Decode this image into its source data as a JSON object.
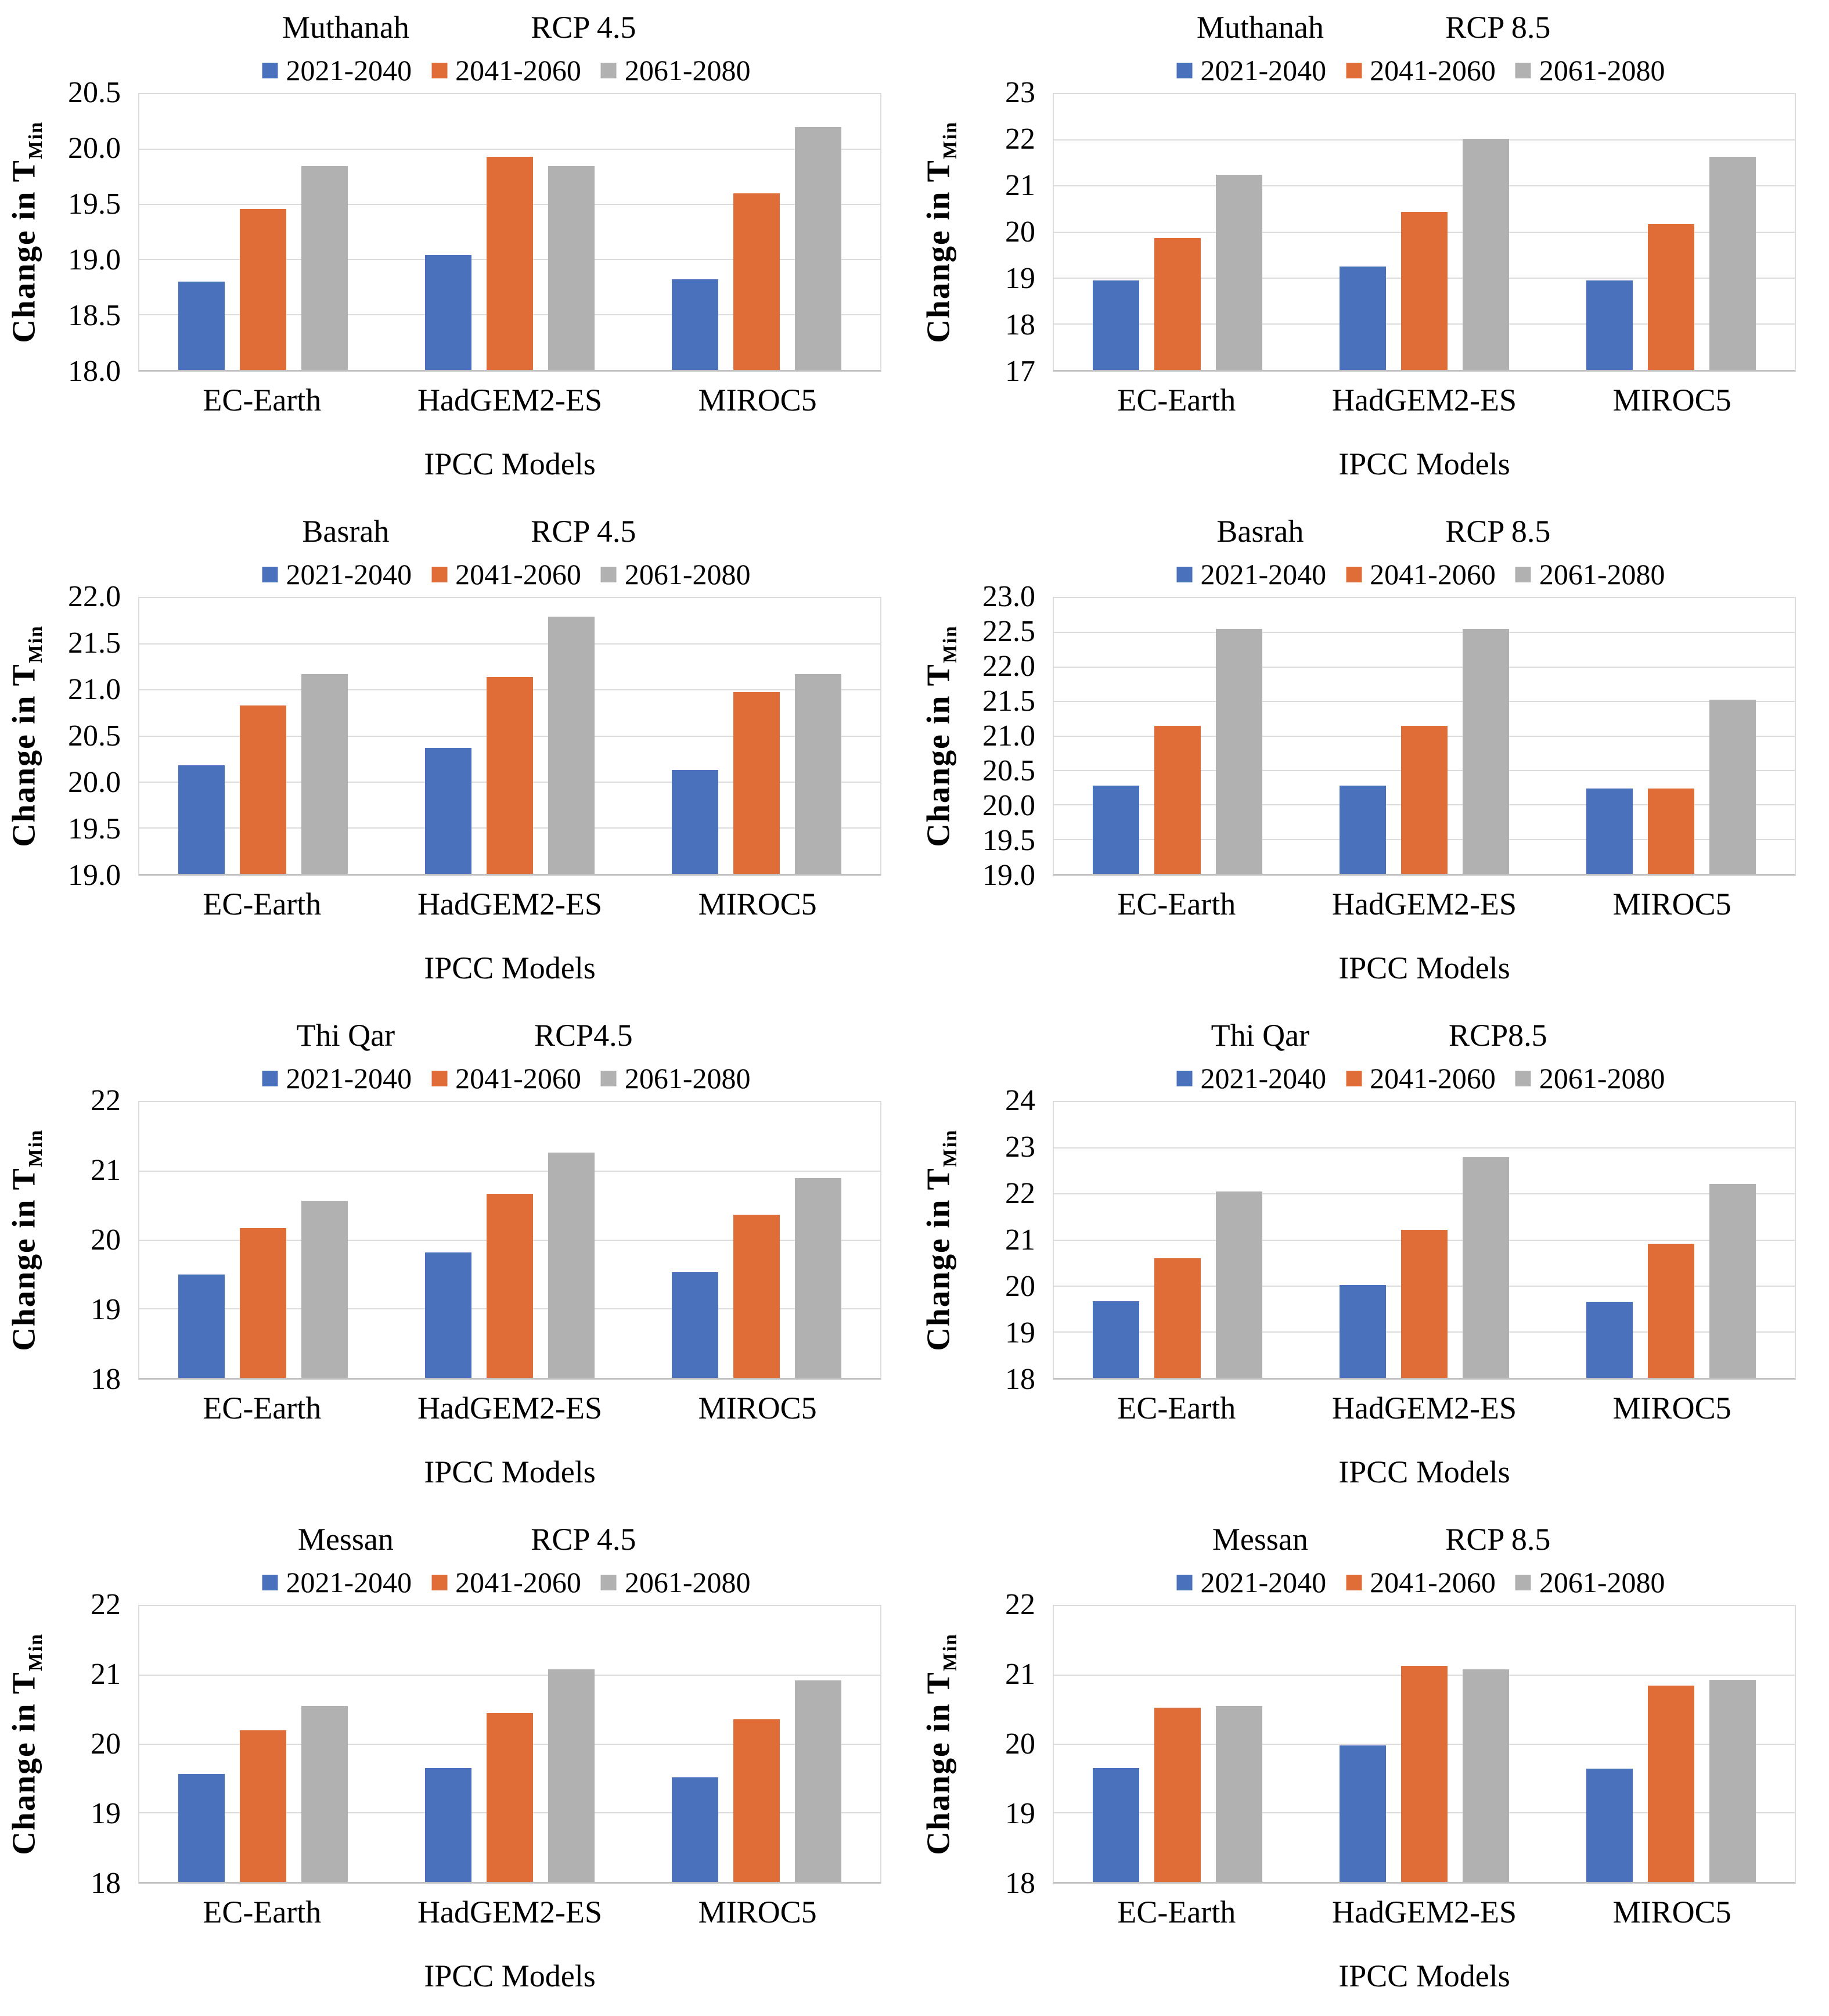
{
  "shared": {
    "ylabel_main": "Change in T",
    "ylabel_sub": "Min",
    "xlabel": "IPCC Models",
    "categories": [
      "EC-Earth",
      "HadGEM2-ES",
      "MIROC5"
    ],
    "legend": [
      "2021-2040",
      "2041-2060",
      "2061-2080"
    ],
    "colors": {
      "series": [
        "#4A72BC",
        "#E06C38",
        "#B1B1B1"
      ],
      "gridline": "#DCDCDC",
      "axis": "#C0C0C0",
      "text": "#000000"
    }
  },
  "chart_data": [
    {
      "type": "bar",
      "site": "Muthanah",
      "scenario": "RCP 4.5",
      "xlabel": "IPCC Models",
      "ylabel": "Change in TMin",
      "categories": [
        "EC-Earth",
        "HadGEM2-ES",
        "MIROC5"
      ],
      "ylim": [
        18.0,
        20.5
      ],
      "yticks": [
        "20.5",
        "20.0",
        "19.5",
        "19.0",
        "18.5",
        "18.0"
      ],
      "grid": true,
      "legend_position": "top",
      "series": [
        {
          "name": "2021-2040",
          "values": [
            18.8,
            19.04,
            18.82
          ]
        },
        {
          "name": "2041-2060",
          "values": [
            19.46,
            19.93,
            19.6
          ]
        },
        {
          "name": "2061-2080",
          "values": [
            19.85,
            19.85,
            20.2
          ]
        }
      ]
    },
    {
      "type": "bar",
      "site": "Muthanah",
      "scenario": "RCP 8.5",
      "xlabel": "IPCC Models",
      "ylabel": "Change in TMin",
      "categories": [
        "EC-Earth",
        "HadGEM2-ES",
        "MIROC5"
      ],
      "ylim": [
        17,
        23
      ],
      "yticks": [
        "23",
        "22",
        "21",
        "20",
        "19",
        "18",
        "17"
      ],
      "grid": true,
      "legend_position": "top",
      "series": [
        {
          "name": "2021-2040",
          "values": [
            18.95,
            19.25,
            18.95
          ]
        },
        {
          "name": "2041-2060",
          "values": [
            19.87,
            20.43,
            20.17
          ]
        },
        {
          "name": "2061-2080",
          "values": [
            21.25,
            22.03,
            21.63
          ]
        }
      ]
    },
    {
      "type": "bar",
      "site": "Basrah",
      "scenario": "RCP 4.5",
      "xlabel": "IPCC Models",
      "ylabel": "Change in TMin",
      "categories": [
        "EC-Earth",
        "HadGEM2-ES",
        "MIROC5"
      ],
      "ylim": [
        19.0,
        22.0
      ],
      "yticks": [
        "22.0",
        "21.5",
        "21.0",
        "20.5",
        "20.0",
        "19.5",
        "19.0"
      ],
      "grid": true,
      "legend_position": "top",
      "series": [
        {
          "name": "2021-2040",
          "values": [
            20.18,
            20.37,
            20.13
          ]
        },
        {
          "name": "2041-2060",
          "values": [
            20.83,
            21.14,
            20.98
          ]
        },
        {
          "name": "2061-2080",
          "values": [
            21.17,
            21.8,
            21.17
          ]
        }
      ]
    },
    {
      "type": "bar",
      "site": "Basrah",
      "scenario": "RCP 8.5",
      "xlabel": "IPCC Models",
      "ylabel": "Change in TMin",
      "categories": [
        "EC-Earth",
        "HadGEM2-ES",
        "MIROC5"
      ],
      "ylim": [
        19.0,
        23.0
      ],
      "yticks": [
        "23.0",
        "22.5",
        "22.0",
        "21.5",
        "21.0",
        "20.5",
        "20.0",
        "19.5",
        "19.0"
      ],
      "grid": true,
      "legend_position": "top",
      "series": [
        {
          "name": "2021-2040",
          "values": [
            20.28,
            20.28,
            20.24
          ]
        },
        {
          "name": "2041-2060",
          "values": [
            21.15,
            21.15,
            20.24
          ]
        },
        {
          "name": "2061-2080",
          "values": [
            22.55,
            22.55,
            21.53
          ]
        }
      ]
    },
    {
      "type": "bar",
      "site": "Thi Qar",
      "scenario": "RCP4.5",
      "xlabel": "IPCC Models",
      "ylabel": "Change in TMin",
      "categories": [
        "EC-Earth",
        "HadGEM2-ES",
        "MIROC5"
      ],
      "ylim": [
        18,
        22
      ],
      "yticks": [
        "22",
        "21",
        "20",
        "19",
        "18"
      ],
      "grid": true,
      "legend_position": "top",
      "series": [
        {
          "name": "2021-2040",
          "values": [
            19.5,
            19.82,
            19.53
          ]
        },
        {
          "name": "2041-2060",
          "values": [
            20.17,
            20.67,
            20.37
          ]
        },
        {
          "name": "2061-2080",
          "values": [
            20.57,
            21.27,
            20.9
          ]
        }
      ]
    },
    {
      "type": "bar",
      "site": "Thi Qar",
      "scenario": "RCP8.5",
      "xlabel": "IPCC Models",
      "ylabel": "Change in TMin",
      "categories": [
        "EC-Earth",
        "HadGEM2-ES",
        "MIROC5"
      ],
      "ylim": [
        18,
        24
      ],
      "yticks": [
        "24",
        "23",
        "22",
        "21",
        "20",
        "19",
        "18"
      ],
      "grid": true,
      "legend_position": "top",
      "series": [
        {
          "name": "2021-2040",
          "values": [
            19.67,
            20.02,
            19.65
          ]
        },
        {
          "name": "2041-2060",
          "values": [
            20.6,
            21.22,
            20.92
          ]
        },
        {
          "name": "2061-2080",
          "values": [
            22.05,
            22.8,
            22.22
          ]
        }
      ]
    },
    {
      "type": "bar",
      "site": "Messan",
      "scenario": "RCP 4.5",
      "xlabel": "IPCC Models",
      "ylabel": "Change in TMin",
      "categories": [
        "EC-Earth",
        "HadGEM2-ES",
        "MIROC5"
      ],
      "ylim": [
        18,
        22
      ],
      "yticks": [
        "22",
        "21",
        "20",
        "19",
        "18"
      ],
      "grid": true,
      "legend_position": "top",
      "series": [
        {
          "name": "2021-2040",
          "values": [
            19.57,
            19.65,
            19.52
          ]
        },
        {
          "name": "2041-2060",
          "values": [
            20.2,
            20.45,
            20.36
          ]
        },
        {
          "name": "2061-2080",
          "values": [
            20.55,
            21.08,
            20.92
          ]
        }
      ]
    },
    {
      "type": "bar",
      "site": "Messan",
      "scenario": "RCP 8.5",
      "xlabel": "IPCC Models",
      "ylabel": "Change in TMin",
      "categories": [
        "EC-Earth",
        "HadGEM2-ES",
        "MIROC5"
      ],
      "ylim": [
        18,
        22
      ],
      "yticks": [
        "22",
        "21",
        "20",
        "19",
        "18"
      ],
      "grid": true,
      "legend_position": "top",
      "series": [
        {
          "name": "2021-2040",
          "values": [
            19.65,
            19.98,
            19.64
          ]
        },
        {
          "name": "2041-2060",
          "values": [
            20.53,
            21.13,
            20.85
          ]
        },
        {
          "name": "2061-2080",
          "values": [
            20.55,
            21.08,
            20.93
          ]
        }
      ]
    }
  ]
}
